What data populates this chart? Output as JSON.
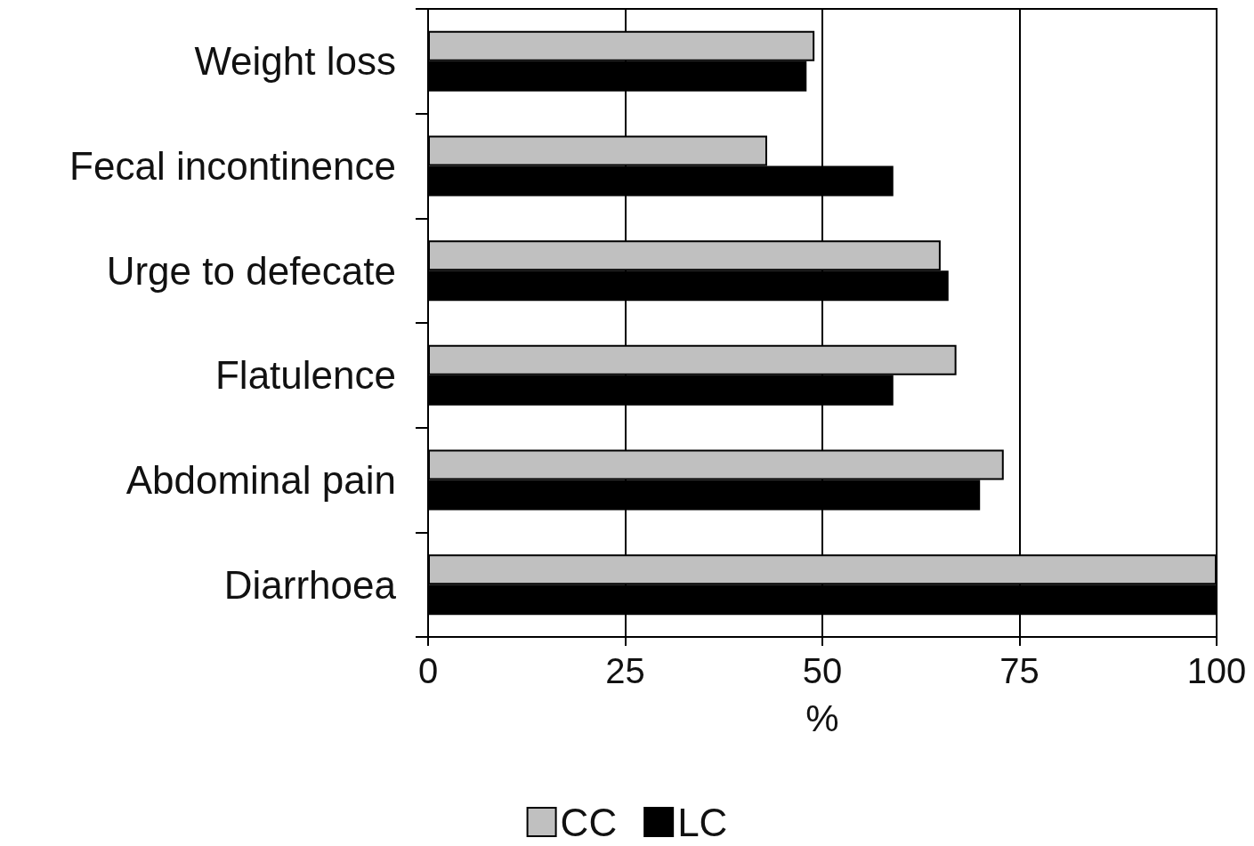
{
  "chart_data": {
    "type": "bar",
    "orientation": "horizontal",
    "xlabel": "%",
    "categories": [
      "Weight loss",
      "Fecal incontinence",
      "Urge to defecate",
      "Flatulence",
      "Abdominal pain",
      "Diarrhoea"
    ],
    "series": [
      {
        "name": "CC",
        "color": "#c0c0c0",
        "values": [
          49,
          43,
          65,
          67,
          73,
          100
        ]
      },
      {
        "name": "LC",
        "color": "#000000",
        "values": [
          48,
          59,
          66,
          59,
          70,
          100
        ]
      }
    ],
    "xlim": [
      0,
      100
    ],
    "xticks": [
      0,
      25,
      50,
      75,
      100
    ],
    "grid": "x",
    "legend": "bottom"
  }
}
